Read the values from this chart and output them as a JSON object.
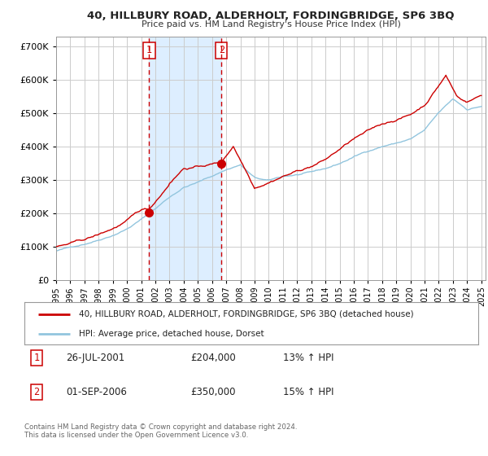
{
  "title": "40, HILLBURY ROAD, ALDERHOLT, FORDINGBRIDGE, SP6 3BQ",
  "subtitle": "Price paid vs. HM Land Registry's House Price Index (HPI)",
  "legend_line1": "40, HILLBURY ROAD, ALDERHOLT, FORDINGBRIDGE, SP6 3BQ (detached house)",
  "legend_line2": "HPI: Average price, detached house, Dorset",
  "transaction1_date": "26-JUL-2001",
  "transaction1_price": "£204,000",
  "transaction1_hpi": "13% ↑ HPI",
  "transaction1_year": 2001.57,
  "transaction1_value": 204000,
  "transaction2_date": "01-SEP-2006",
  "transaction2_price": "£350,000",
  "transaction2_hpi": "15% ↑ HPI",
  "transaction2_year": 2006.67,
  "transaction2_value": 350000,
  "hpi_color": "#92c5de",
  "price_color": "#cc0000",
  "shade_color": "#ddeeff",
  "dashed_color": "#cc0000",
  "background_color": "#ffffff",
  "grid_color": "#cccccc",
  "ylim": [
    0,
    730000
  ],
  "yticks": [
    0,
    100000,
    200000,
    300000,
    400000,
    500000,
    600000,
    700000
  ],
  "xstart": 1995,
  "xend": 2025,
  "footnote": "Contains HM Land Registry data © Crown copyright and database right 2024.\nThis data is licensed under the Open Government Licence v3.0."
}
